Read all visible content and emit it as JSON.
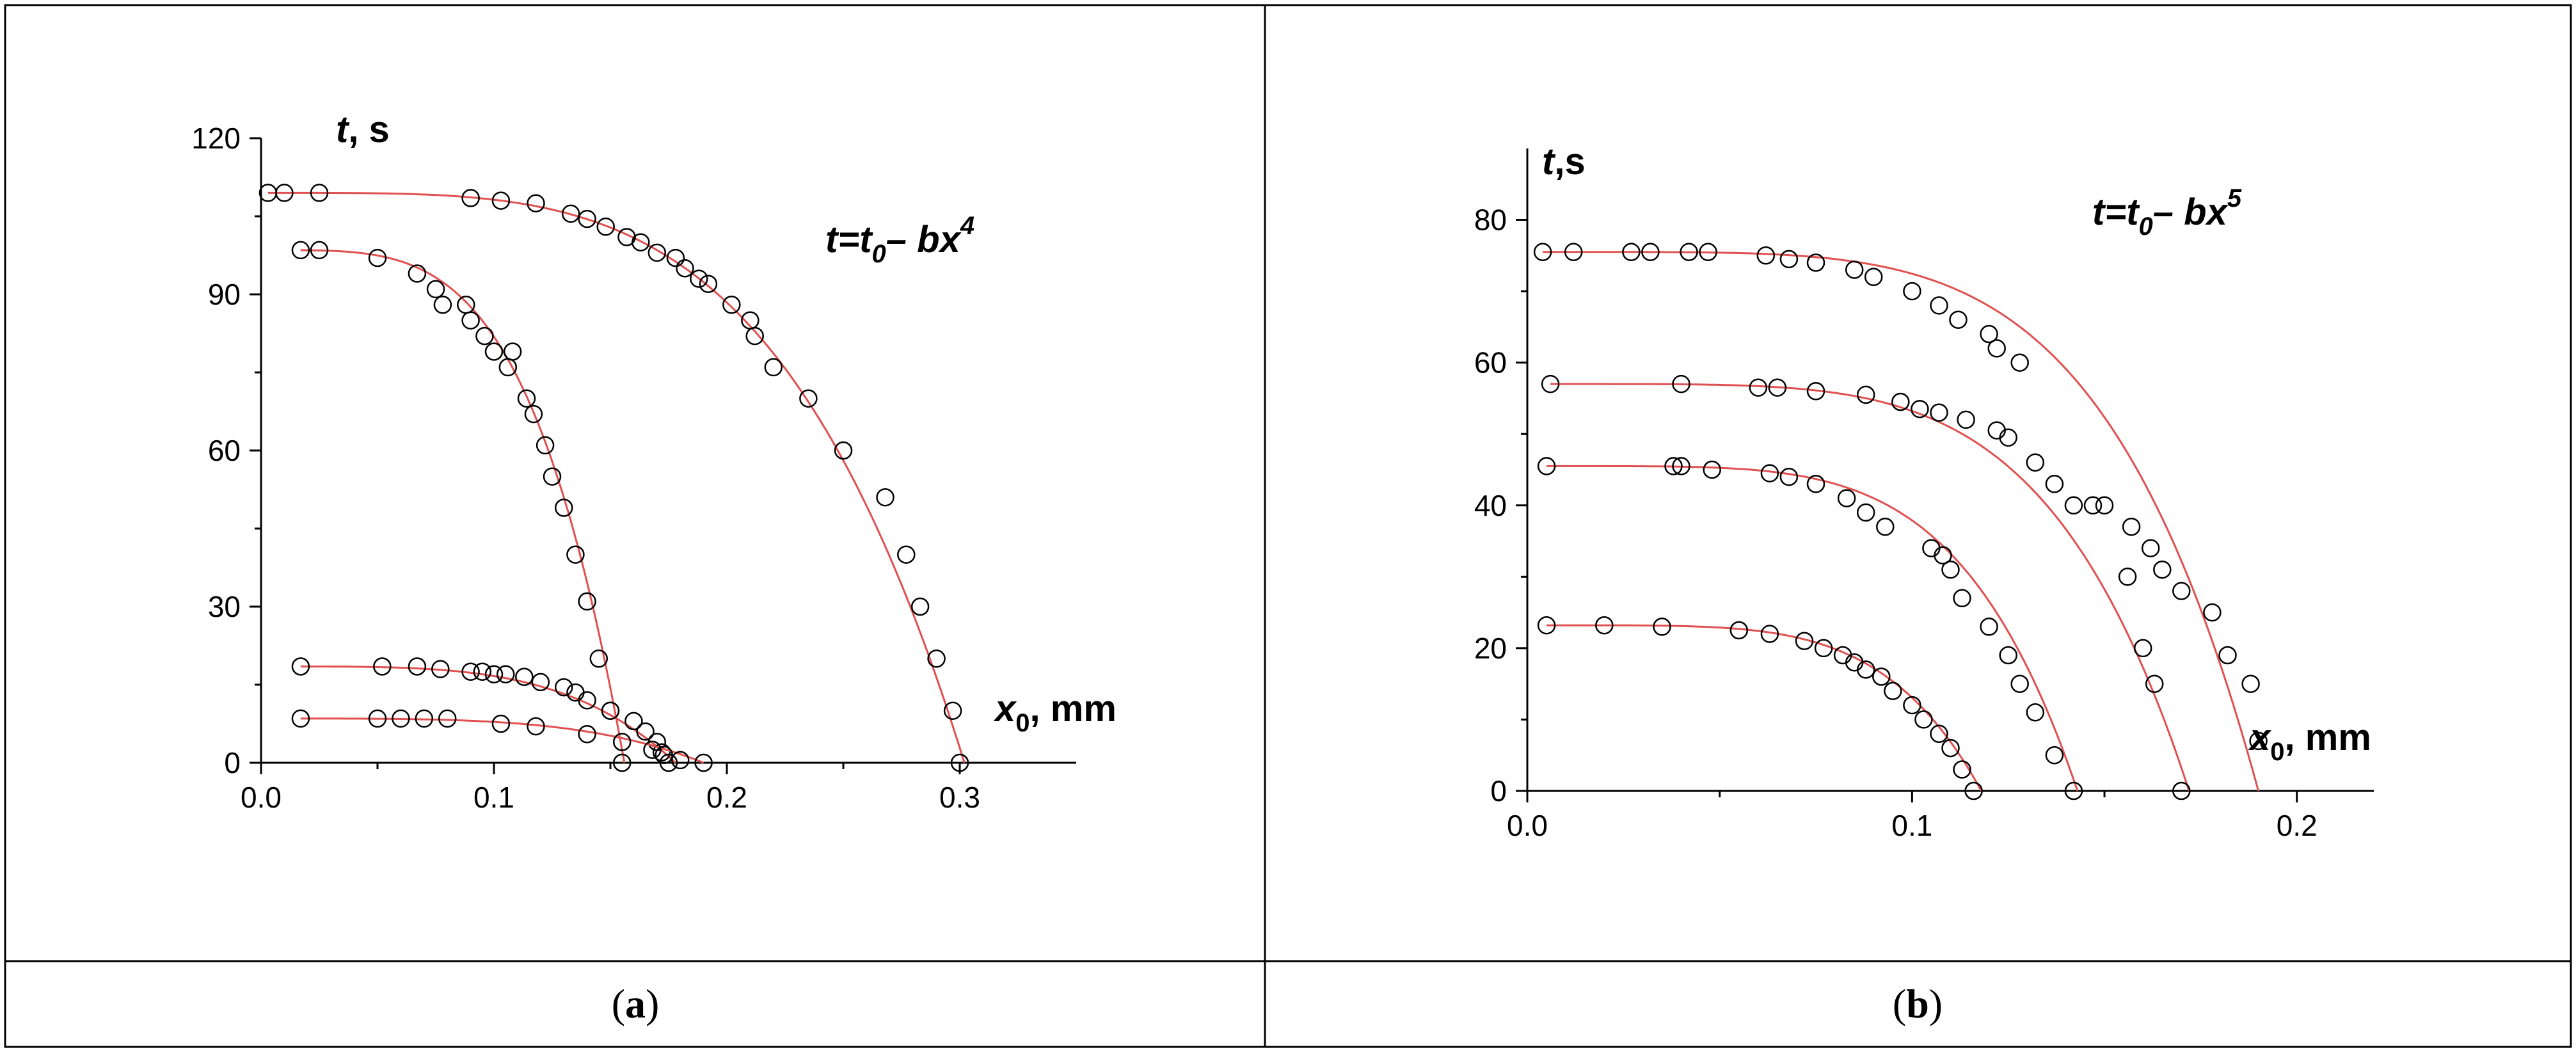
{
  "panels": [
    {
      "label_open": "(",
      "label_letter": "a",
      "label_close": ")",
      "equation": {
        "t": "t",
        "eq": "=",
        "t0": "t",
        "t0_sub": "0",
        "minus": "– ",
        "b": "b",
        "x": "x",
        "exp": "4"
      },
      "y_title": {
        "var": "t",
        "unit": ", s"
      },
      "x_title": {
        "var": "x",
        "sub": "0",
        "unit": ", mm"
      }
    },
    {
      "label_open": "(",
      "label_letter": "b",
      "label_close": ")",
      "equation": {
        "t": "t",
        "eq": "=",
        "t0": "t",
        "t0_sub": "0",
        "minus": "– ",
        "b": "b",
        "x": "x",
        "exp": "5"
      },
      "y_title": {
        "var": "t",
        "unit": ",s"
      },
      "x_title": {
        "var": "x",
        "sub": "0",
        "unit": ", mm"
      }
    }
  ],
  "colors": {
    "fit_line": "#e05050",
    "points": "#000000",
    "frame": "#000000"
  },
  "chart_data": [
    {
      "type": "scatter",
      "title": "",
      "xlabel": "x0, mm",
      "ylabel": "t, s",
      "xlim": [
        0.0,
        0.35
      ],
      "ylim": [
        0,
        120
      ],
      "x_ticks": [
        0.0,
        0.1,
        0.2,
        0.3
      ],
      "x_tick_labels": [
        "0.0",
        "0.1",
        "0.2",
        "0.3"
      ],
      "y_ticks": [
        0,
        30,
        60,
        90,
        120
      ],
      "y_tick_labels": [
        "0",
        "30",
        "60",
        "90",
        "120"
      ],
      "grid": false,
      "fit": "t = t0 - b x^4",
      "series": [
        {
          "t0": 109.5,
          "x_end": 0.302,
          "x": [
            0.003,
            0.01,
            0.025,
            0.09,
            0.103,
            0.118,
            0.133,
            0.14,
            0.148,
            0.157,
            0.163,
            0.17,
            0.178,
            0.182,
            0.188,
            0.192,
            0.202,
            0.21,
            0.212,
            0.22,
            0.235,
            0.25,
            0.268,
            0.277,
            0.283,
            0.29,
            0.297,
            0.3
          ],
          "y": [
            109.5,
            109.5,
            109.5,
            108.5,
            108,
            107.5,
            105.5,
            104.5,
            103,
            101,
            100,
            98,
            97,
            95,
            93,
            92,
            88,
            85,
            82,
            76,
            70,
            60,
            51,
            40,
            30,
            20,
            10,
            0
          ]
        },
        {
          "t0": 98.5,
          "x_end": 0.156,
          "x": [
            0.017,
            0.025,
            0.05,
            0.067,
            0.075,
            0.078,
            0.088,
            0.09,
            0.096,
            0.1,
            0.106,
            0.108,
            0.114,
            0.117,
            0.122,
            0.125,
            0.13,
            0.135,
            0.14,
            0.145,
            0.15,
            0.155
          ],
          "y": [
            98.5,
            98.5,
            97,
            94,
            91,
            88,
            88,
            85,
            82,
            79,
            76,
            79,
            70,
            67,
            61,
            55,
            49,
            40,
            31,
            20,
            10,
            0
          ]
        },
        {
          "t0": 18.5,
          "x_end": 0.178,
          "x": [
            0.017,
            0.052,
            0.067,
            0.077,
            0.09,
            0.095,
            0.1,
            0.105,
            0.113,
            0.12,
            0.13,
            0.135,
            0.14,
            0.15,
            0.16,
            0.165,
            0.17,
            0.172,
            0.175
          ],
          "y": [
            18.5,
            18.5,
            18.5,
            18,
            17.5,
            17.5,
            17,
            17,
            16.5,
            15.5,
            14.5,
            13.5,
            12,
            10,
            8,
            6,
            4,
            2,
            0
          ]
        },
        {
          "t0": 8.5,
          "x_end": 0.19,
          "x": [
            0.017,
            0.05,
            0.06,
            0.07,
            0.08,
            0.103,
            0.118,
            0.14,
            0.155,
            0.168,
            0.173,
            0.18,
            0.19
          ],
          "y": [
            8.5,
            8.5,
            8.5,
            8.5,
            8.5,
            7.5,
            7,
            5.5,
            4,
            2.5,
            1.5,
            0.5,
            0
          ]
        }
      ]
    },
    {
      "type": "scatter",
      "title": "",
      "xlabel": "x0, mm",
      "ylabel": "t,s",
      "xlim": [
        0.0,
        0.22
      ],
      "ylim": [
        0,
        90
      ],
      "x_ticks": [
        0.0,
        0.1,
        0.2
      ],
      "x_tick_labels": [
        "0.0",
        "0.1",
        "0.2"
      ],
      "y_ticks": [
        0,
        20,
        40,
        60,
        80
      ],
      "y_tick_labels": [
        "0",
        "20",
        "40",
        "60",
        "80"
      ],
      "grid": false,
      "fit": "t = t0 - b x^5",
      "series": [
        {
          "t0": 75.5,
          "x_end": 0.19,
          "x": [
            0.004,
            0.012,
            0.027,
            0.032,
            0.042,
            0.047,
            0.062,
            0.068,
            0.075,
            0.085,
            0.09,
            0.1,
            0.107,
            0.112,
            0.12,
            0.122,
            0.128,
            0.15,
            0.157,
            0.162,
            0.165,
            0.17,
            0.178,
            0.182,
            0.188,
            0.19
          ],
          "y": [
            75.5,
            75.5,
            75.5,
            75.5,
            75.5,
            75.5,
            75,
            74.5,
            74,
            73,
            72,
            70,
            68,
            66,
            64,
            62,
            60,
            40,
            37,
            34,
            31,
            28,
            25,
            19,
            15,
            7
          ]
        },
        {
          "t0": 57,
          "x_end": 0.172,
          "x": [
            0.006,
            0.04,
            0.06,
            0.065,
            0.075,
            0.088,
            0.097,
            0.102,
            0.107,
            0.114,
            0.122,
            0.125,
            0.132,
            0.137,
            0.142,
            0.147,
            0.156,
            0.16,
            0.163,
            0.17
          ],
          "y": [
            57,
            57,
            56.5,
            56.5,
            56,
            55.5,
            54.5,
            53.5,
            53,
            52,
            50.5,
            49.5,
            46,
            43,
            40,
            40,
            30,
            20,
            15,
            0
          ]
        },
        {
          "t0": 45.5,
          "x_end": 0.143,
          "x": [
            0.005,
            0.038,
            0.04,
            0.048,
            0.063,
            0.068,
            0.075,
            0.083,
            0.088,
            0.093,
            0.105,
            0.108,
            0.11,
            0.113,
            0.12,
            0.125,
            0.128,
            0.132,
            0.137,
            0.142
          ],
          "y": [
            45.5,
            45.5,
            45.5,
            45,
            44.5,
            44,
            43,
            41,
            39,
            37,
            34,
            33,
            31,
            27,
            23,
            19,
            15,
            11,
            5,
            0
          ]
        },
        {
          "t0": 23.2,
          "x_end": 0.118,
          "x": [
            0.005,
            0.02,
            0.035,
            0.055,
            0.063,
            0.072,
            0.077,
            0.082,
            0.085,
            0.088,
            0.092,
            0.095,
            0.1,
            0.103,
            0.107,
            0.11,
            0.113,
            0.116
          ],
          "y": [
            23.2,
            23.2,
            23,
            22.5,
            22,
            21,
            20,
            19,
            18,
            17,
            16,
            14,
            12,
            10,
            8,
            6,
            3,
            0
          ]
        }
      ]
    }
  ]
}
